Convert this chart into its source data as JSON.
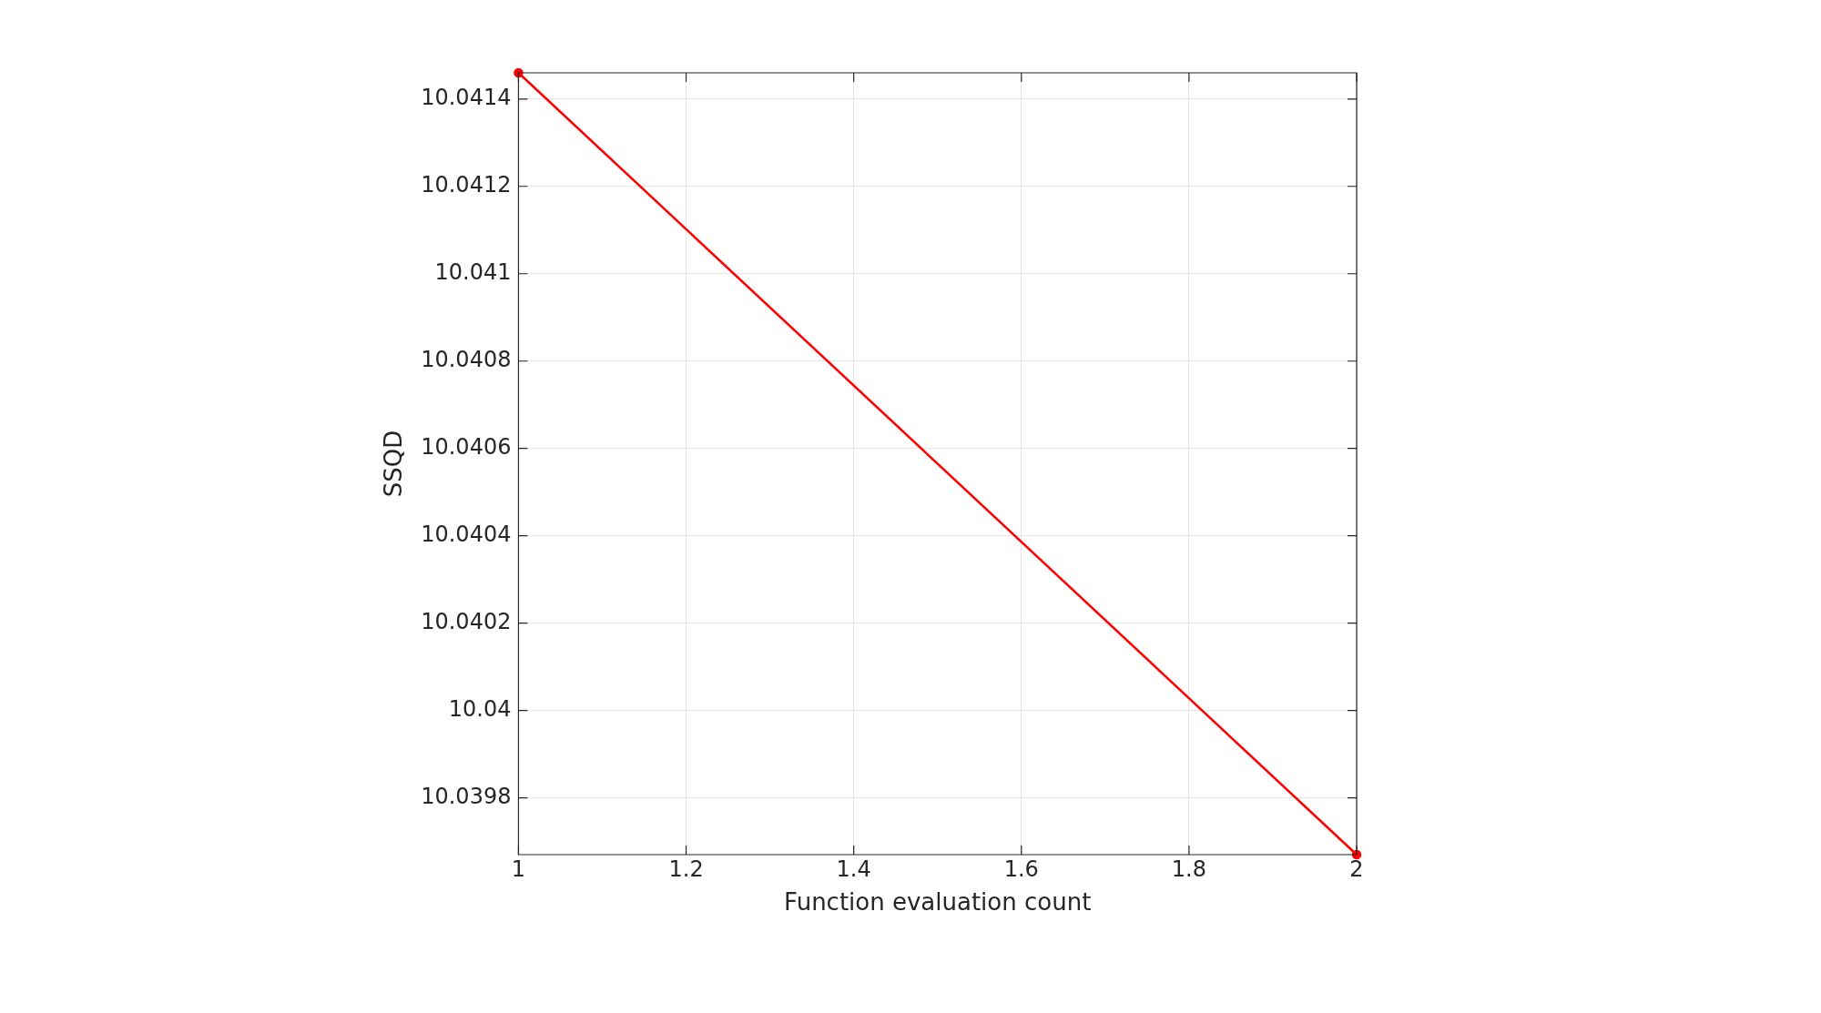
{
  "chart_data": {
    "type": "line",
    "xlabel": "Function evaluation count",
    "ylabel": "SSQD",
    "x": [
      1,
      2
    ],
    "series": [
      {
        "color": "#ff0000",
        "values": [
          10.04146,
          10.03967
        ]
      }
    ],
    "xlim": [
      1,
      2
    ],
    "xticks": [
      1,
      1.2,
      1.4,
      1.6,
      1.8,
      2
    ],
    "ylim": [
      10.03967,
      10.04146
    ],
    "yticks": [
      10.0398,
      10.04,
      10.0402,
      10.0404,
      10.0406,
      10.0408,
      10.041,
      10.0412,
      10.0414
    ],
    "grid": true,
    "legend": false,
    "marker": "circle",
    "line_style": "solid"
  }
}
